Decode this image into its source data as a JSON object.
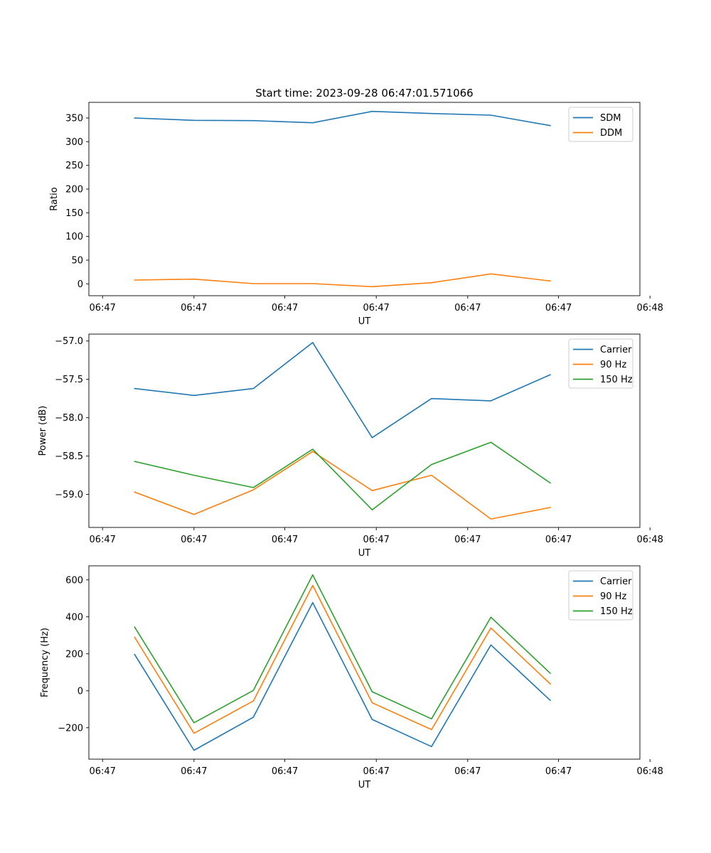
{
  "chart_data": [
    {
      "type": "line",
      "title": "Start time: 2023-09-28 06:47:01.571066",
      "xlabel": "UT",
      "ylabel": "Ratio",
      "x": [
        1,
        2,
        3,
        4,
        5,
        6,
        7,
        8
      ],
      "xlim": [
        0.23,
        9.51
      ],
      "x_ticks": [
        {
          "value": 0.46,
          "label": "06:47"
        },
        {
          "value": 2,
          "label": "06:47"
        },
        {
          "value": 3.53,
          "label": "06:47"
        },
        {
          "value": 5.07,
          "label": "06:47"
        },
        {
          "value": 6.61,
          "label": "06:47"
        },
        {
          "value": 8.14,
          "label": "06:47"
        },
        {
          "value": 9.68,
          "label": "06:48"
        }
      ],
      "ylim": [
        -25,
        383
      ],
      "y_ticks": [
        {
          "value": 0,
          "label": "0"
        },
        {
          "value": 50,
          "label": "50"
        },
        {
          "value": 100,
          "label": "100"
        },
        {
          "value": 150,
          "label": "150"
        },
        {
          "value": 200,
          "label": "200"
        },
        {
          "value": 250,
          "label": "250"
        },
        {
          "value": 300,
          "label": "300"
        },
        {
          "value": 350,
          "label": "350"
        }
      ],
      "legend_position": "top-right",
      "series": [
        {
          "name": "SDM",
          "color": "#1f77b4",
          "values": [
            350,
            345,
            344.5,
            340,
            364,
            359.5,
            356,
            334
          ]
        },
        {
          "name": "DDM",
          "color": "#ff7f0e",
          "values": [
            8,
            10,
            0.5,
            0.5,
            -6,
            2.5,
            21,
            6
          ]
        }
      ]
    },
    {
      "type": "line",
      "title": "",
      "xlabel": "UT",
      "ylabel": "Power (dB)",
      "x": [
        1,
        2,
        3,
        4,
        5,
        6,
        7,
        8
      ],
      "xlim": [
        0.23,
        9.51
      ],
      "x_ticks": [
        {
          "value": 0.46,
          "label": "06:47"
        },
        {
          "value": 2,
          "label": "06:47"
        },
        {
          "value": 3.53,
          "label": "06:47"
        },
        {
          "value": 5.07,
          "label": "06:47"
        },
        {
          "value": 6.61,
          "label": "06:47"
        },
        {
          "value": 8.14,
          "label": "06:47"
        },
        {
          "value": 9.68,
          "label": "06:48"
        }
      ],
      "ylim": [
        -59.43,
        -56.91
      ],
      "y_ticks": [
        {
          "value": -59.0,
          "label": "−59.0"
        },
        {
          "value": -58.5,
          "label": "−58.5"
        },
        {
          "value": -58.0,
          "label": "−58.0"
        },
        {
          "value": -57.5,
          "label": "−57.5"
        },
        {
          "value": -57.0,
          "label": "−57.0"
        }
      ],
      "legend_position": "top-right",
      "series": [
        {
          "name": "Carrier",
          "color": "#1f77b4",
          "values": [
            -57.62,
            -57.71,
            -57.62,
            -57.02,
            -58.26,
            -57.75,
            -57.78,
            -57.44
          ]
        },
        {
          "name": "90 Hz",
          "color": "#ff7f0e",
          "values": [
            -58.97,
            -59.26,
            -58.94,
            -58.44,
            -58.95,
            -58.75,
            -59.32,
            -59.17
          ]
        },
        {
          "name": "150 Hz",
          "color": "#2ca02c",
          "values": [
            -58.57,
            -58.75,
            -58.91,
            -58.41,
            -59.2,
            -58.61,
            -58.32,
            -58.85
          ]
        }
      ]
    },
    {
      "type": "line",
      "title": "",
      "xlabel": "UT",
      "ylabel": "Frequency (Hz)",
      "x": [
        1,
        2,
        3,
        4,
        5,
        6,
        7,
        8
      ],
      "xlim": [
        0.23,
        9.51
      ],
      "x_ticks": [
        {
          "value": 0.46,
          "label": "06:47"
        },
        {
          "value": 2,
          "label": "06:47"
        },
        {
          "value": 3.53,
          "label": "06:47"
        },
        {
          "value": 5.07,
          "label": "06:47"
        },
        {
          "value": 6.61,
          "label": "06:47"
        },
        {
          "value": 8.14,
          "label": "06:47"
        },
        {
          "value": 9.68,
          "label": "06:48"
        }
      ],
      "ylim": [
        -370,
        676
      ],
      "y_ticks": [
        {
          "value": -200,
          "label": "−200"
        },
        {
          "value": 0,
          "label": "0"
        },
        {
          "value": 200,
          "label": "200"
        },
        {
          "value": 400,
          "label": "400"
        },
        {
          "value": 600,
          "label": "600"
        }
      ],
      "legend_position": "top-right",
      "series": [
        {
          "name": "Carrier",
          "color": "#1f77b4",
          "values": [
            197,
            -322,
            -143,
            477,
            -155,
            -302,
            248,
            -52
          ]
        },
        {
          "name": "90 Hz",
          "color": "#ff7f0e",
          "values": [
            290,
            -230,
            -55,
            570,
            -65,
            -210,
            340,
            37
          ]
        },
        {
          "name": "150 Hz",
          "color": "#2ca02c",
          "values": [
            345,
            -173,
            2,
            627,
            -5,
            -152,
            398,
            95
          ]
        }
      ]
    }
  ]
}
